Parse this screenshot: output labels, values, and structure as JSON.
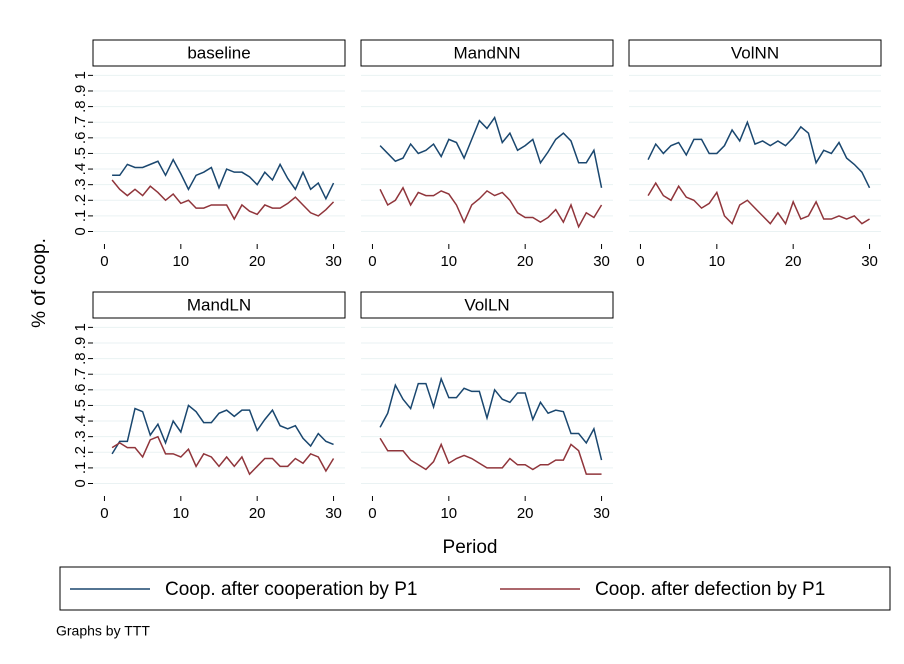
{
  "chart_data": {
    "type": "line",
    "y_label": "% of coop.",
    "x_label": "Period",
    "note": "Graphs by TTT",
    "xlim": [
      -1.5,
      31.5
    ],
    "xticks": [
      0,
      10,
      20,
      30
    ],
    "ylim": [
      -0.08,
      1.06
    ],
    "yticks": [
      0,
      {
        "value": 0.1,
        "label": ".1"
      },
      {
        "value": 0.2,
        "label": ".2"
      },
      {
        "value": 0.3,
        "label": ".3"
      },
      {
        "value": 0.4,
        "label": ".4"
      },
      {
        "value": 0.5,
        "label": ".5"
      },
      {
        "value": 0.6,
        "label": ".6"
      },
      {
        "value": 0.7,
        "label": ".7"
      },
      {
        "value": 0.8,
        "label": ".8"
      },
      {
        "value": 0.9,
        "label": ".9"
      },
      1
    ],
    "grid": true,
    "x": [
      1,
      2,
      3,
      4,
      5,
      6,
      7,
      8,
      9,
      10,
      11,
      12,
      13,
      14,
      15,
      16,
      17,
      18,
      19,
      20,
      21,
      22,
      23,
      24,
      25,
      26,
      27,
      28,
      29,
      30
    ],
    "series": [
      {
        "name": "Coop. after cooperation by P1",
        "color": "#1a476f"
      },
      {
        "name": "Coop. after defection by P1",
        "color": "#90353b"
      }
    ],
    "panels": [
      {
        "title": "baseline",
        "series": [
          {
            "values": [
              0.36,
              0.36,
              0.43,
              0.41,
              0.41,
              0.43,
              0.45,
              0.36,
              0.46,
              0.37,
              0.27,
              0.36,
              0.38,
              0.41,
              0.28,
              0.4,
              0.38,
              0.38,
              0.35,
              0.3,
              0.38,
              0.33,
              0.43,
              0.34,
              0.27,
              0.38,
              0.27,
              0.31,
              0.21,
              0.31
            ]
          },
          {
            "values": [
              0.33,
              0.27,
              0.23,
              0.27,
              0.23,
              0.29,
              0.25,
              0.2,
              0.24,
              0.18,
              0.2,
              0.15,
              0.15,
              0.17,
              0.17,
              0.17,
              0.08,
              0.17,
              0.13,
              0.11,
              0.17,
              0.15,
              0.15,
              0.18,
              0.22,
              0.17,
              0.12,
              0.1,
              0.14,
              0.19
            ]
          }
        ]
      },
      {
        "title": "MandNN",
        "series": [
          {
            "values": [
              0.55,
              0.5,
              0.45,
              0.47,
              0.56,
              0.5,
              0.52,
              0.56,
              0.48,
              0.59,
              0.57,
              0.47,
              0.59,
              0.71,
              0.66,
              0.73,
              0.57,
              0.63,
              0.52,
              0.55,
              0.59,
              0.44,
              0.51,
              0.59,
              0.63,
              0.58,
              0.44,
              0.44,
              0.52,
              0.28
            ]
          },
          {
            "values": [
              0.27,
              0.17,
              0.2,
              0.28,
              0.17,
              0.25,
              0.23,
              0.23,
              0.26,
              0.24,
              0.17,
              0.06,
              0.17,
              0.21,
              0.26,
              0.23,
              0.25,
              0.2,
              0.12,
              0.09,
              0.09,
              0.06,
              0.09,
              0.14,
              0.06,
              0.17,
              0.03,
              0.12,
              0.09,
              0.17
            ]
          }
        ]
      },
      {
        "title": "VolNN",
        "series": [
          {
            "values": [
              0.46,
              0.56,
              0.5,
              0.55,
              0.57,
              0.49,
              0.59,
              0.59,
              0.5,
              0.5,
              0.55,
              0.65,
              0.58,
              0.7,
              0.56,
              0.58,
              0.55,
              0.58,
              0.55,
              0.6,
              0.67,
              0.63,
              0.44,
              0.52,
              0.5,
              0.57,
              0.47,
              0.43,
              0.38,
              0.28
            ]
          },
          {
            "values": [
              0.23,
              0.31,
              0.23,
              0.2,
              0.29,
              0.22,
              0.2,
              0.15,
              0.18,
              0.25,
              0.1,
              0.05,
              0.17,
              0.2,
              0.15,
              0.1,
              0.05,
              0.12,
              0.05,
              0.19,
              0.08,
              0.1,
              0.19,
              0.08,
              0.08,
              0.1,
              0.08,
              0.1,
              0.05,
              0.08
            ]
          }
        ]
      },
      {
        "title": "MandLN",
        "series": [
          {
            "values": [
              0.19,
              0.27,
              0.27,
              0.48,
              0.46,
              0.31,
              0.38,
              0.26,
              0.4,
              0.33,
              0.5,
              0.46,
              0.39,
              0.39,
              0.45,
              0.47,
              0.43,
              0.47,
              0.47,
              0.34,
              0.41,
              0.47,
              0.37,
              0.35,
              0.37,
              0.29,
              0.24,
              0.32,
              0.27,
              0.25
            ]
          },
          {
            "values": [
              0.23,
              0.26,
              0.23,
              0.23,
              0.17,
              0.28,
              0.3,
              0.19,
              0.19,
              0.17,
              0.22,
              0.11,
              0.19,
              0.17,
              0.11,
              0.17,
              0.11,
              0.17,
              0.06,
              0.11,
              0.16,
              0.16,
              0.11,
              0.11,
              0.16,
              0.13,
              0.19,
              0.17,
              0.08,
              0.16
            ]
          }
        ]
      },
      {
        "title": "VolLN",
        "series": [
          {
            "values": [
              0.36,
              0.45,
              0.63,
              0.54,
              0.48,
              0.64,
              0.64,
              0.49,
              0.67,
              0.55,
              0.55,
              0.61,
              0.59,
              0.59,
              0.42,
              0.6,
              0.54,
              0.52,
              0.58,
              0.58,
              0.41,
              0.52,
              0.45,
              0.47,
              0.46,
              0.32,
              0.32,
              0.26,
              0.35,
              0.15
            ]
          },
          {
            "values": [
              0.29,
              0.21,
              0.21,
              0.21,
              0.15,
              0.12,
              0.09,
              0.14,
              0.25,
              0.13,
              0.16,
              0.18,
              0.16,
              0.13,
              0.1,
              0.1,
              0.1,
              0.16,
              0.12,
              0.12,
              0.09,
              0.12,
              0.12,
              0.15,
              0.15,
              0.25,
              0.21,
              0.06,
              0.06,
              0.06
            ]
          }
        ]
      }
    ]
  }
}
